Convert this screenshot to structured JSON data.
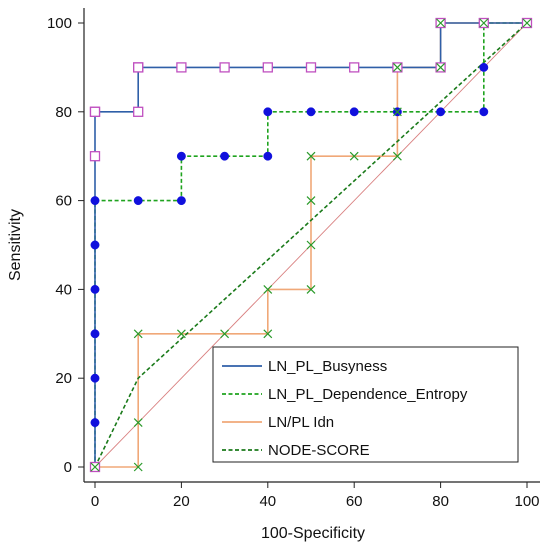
{
  "chart_data": {
    "type": "line",
    "title": "",
    "xlabel": "100-Specificity",
    "ylabel": "Sensitivity",
    "xlim": [
      0,
      100
    ],
    "ylim": [
      0,
      100
    ],
    "xticks": [
      "0",
      "20",
      "40",
      "60",
      "80",
      "100"
    ],
    "yticks": [
      "0",
      "20",
      "40",
      "60",
      "80",
      "100"
    ],
    "grid": false,
    "legend_position": "bottom-right",
    "reference_line": {
      "x": [
        0,
        100
      ],
      "y": [
        0,
        100
      ],
      "color": "#d98080"
    },
    "series": [
      {
        "name": "LN_PL_Busyness",
        "color": "#2f5fa8",
        "line_style": "solid",
        "marker": "open-square",
        "marker_color": "#c050c0",
        "x": [
          0,
          0,
          0,
          0,
          10,
          10,
          10,
          20,
          30,
          40,
          50,
          60,
          70,
          80,
          80,
          90,
          100
        ],
        "y": [
          0,
          70,
          80,
          80,
          80,
          90,
          90,
          90,
          90,
          90,
          90,
          90,
          90,
          90,
          100,
          100,
          100
        ]
      },
      {
        "name": "LN_PL_Dependence_Entropy",
        "color": "#1fa31f",
        "line_style": "dashed",
        "marker": "filled-circle",
        "marker_color": "#1010dd",
        "x": [
          0,
          0,
          0,
          0,
          0,
          0,
          0,
          10,
          20,
          20,
          30,
          40,
          40,
          50,
          60,
          70,
          80,
          90,
          90,
          90,
          100
        ],
        "y": [
          0,
          10,
          20,
          30,
          40,
          50,
          60,
          60,
          60,
          70,
          70,
          70,
          80,
          80,
          80,
          80,
          80,
          80,
          90,
          100,
          100
        ]
      },
      {
        "name": "LN/PL Idn",
        "color": "#f0a878",
        "line_style": "solid",
        "marker": "x",
        "marker_color": "#2a9a2a",
        "x": [
          0,
          10,
          10,
          10,
          20,
          30,
          40,
          40,
          50,
          50,
          50,
          50,
          60,
          70,
          70,
          70,
          80,
          80,
          90,
          100
        ],
        "y": [
          0,
          0,
          10,
          30,
          30,
          30,
          30,
          40,
          40,
          50,
          60,
          70,
          70,
          70,
          80,
          90,
          90,
          100,
          100,
          100
        ]
      },
      {
        "name": "NODE-SCORE",
        "color": "#1a7a1a",
        "line_style": "dashed",
        "marker": "none",
        "x": [
          0,
          10,
          100
        ],
        "y": [
          0,
          20,
          100
        ]
      }
    ]
  }
}
